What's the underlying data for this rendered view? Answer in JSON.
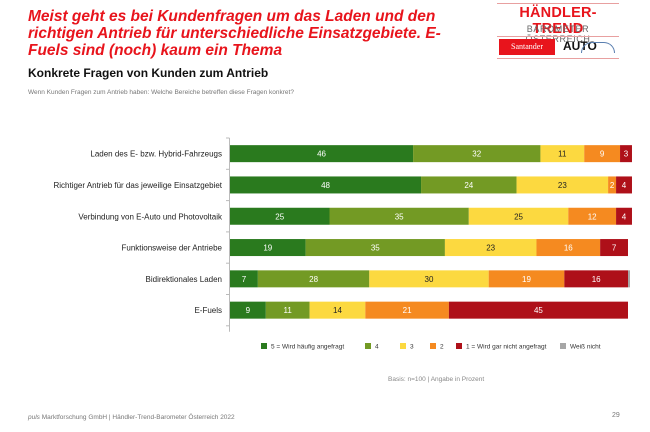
{
  "headline": "Meist geht es bei Kundenfragen um das Laden und den richtigen Antrieb für unterschiedliche Einsatzgebiete. E-Fuels sind (noch) kaum ein Thema",
  "subtitle": "Konkrete Fragen von Kunden zum Antrieb",
  "question": "Wenn Kunden Fragen zum Antrieb haben: Welche Bereiche betreffen diese Fragen konkret?",
  "logo": {
    "line1": "HÄNDLER-TREND",
    "line2": "BAROMETER ÖSTERREICH",
    "sponsor1": "Santander",
    "sponsor2": "AUTO"
  },
  "basis": "Basis: n=100 | Angabe in Prozent",
  "footer": {
    "brand": "puls",
    "text": " Marktforschung GmbH | Händler-Trend-Barometer Österreich 2022"
  },
  "page_number": "29",
  "chart_data": {
    "type": "bar",
    "orientation": "horizontal",
    "stacked": true,
    "title": "Konkrete Fragen von Kunden zum Antrieb",
    "xlabel": "",
    "ylabel": "",
    "xlim": [
      0,
      100
    ],
    "grid": false,
    "legend_position": "bottom",
    "categories": [
      "Laden des E- bzw. Hybrid-Fahrzeugs",
      "Richtiger Antrieb für das jeweilige Einsatzgebiet",
      "Verbindung von E-Auto und Photovoltaik",
      "Funktionsweise der Antriebe",
      "Bidirektionales Laden",
      "E-Fuels"
    ],
    "series": [
      {
        "name": "5 = Wird häufig angefragt",
        "color": "#2a7a1e",
        "label_color": "#ffffff",
        "values": [
          46,
          48,
          25,
          19,
          7,
          9
        ]
      },
      {
        "name": "4",
        "color": "#739a24",
        "label_color": "#ffffff",
        "values": [
          32,
          24,
          35,
          35,
          28,
          11
        ]
      },
      {
        "name": "3",
        "color": "#fcd940",
        "label_color": "#222222",
        "values": [
          11,
          23,
          25,
          23,
          30,
          14
        ]
      },
      {
        "name": "2",
        "color": "#f58a20",
        "label_color": "#ffffff",
        "values": [
          9,
          2,
          12,
          16,
          19,
          21
        ]
      },
      {
        "name": "1 = Wird gar nicht angefragt",
        "color": "#ae1019",
        "label_color": "#ffffff",
        "values": [
          3,
          4,
          4,
          7,
          16,
          45
        ]
      },
      {
        "name": "Weiß nicht",
        "color": "#a6a6a6",
        "label_color": "#ffffff",
        "values": [
          0,
          0,
          0,
          0,
          0.5,
          0
        ]
      }
    ],
    "show_value_labels": true,
    "hide_labels_for": [
      "Weiß nicht"
    ]
  }
}
